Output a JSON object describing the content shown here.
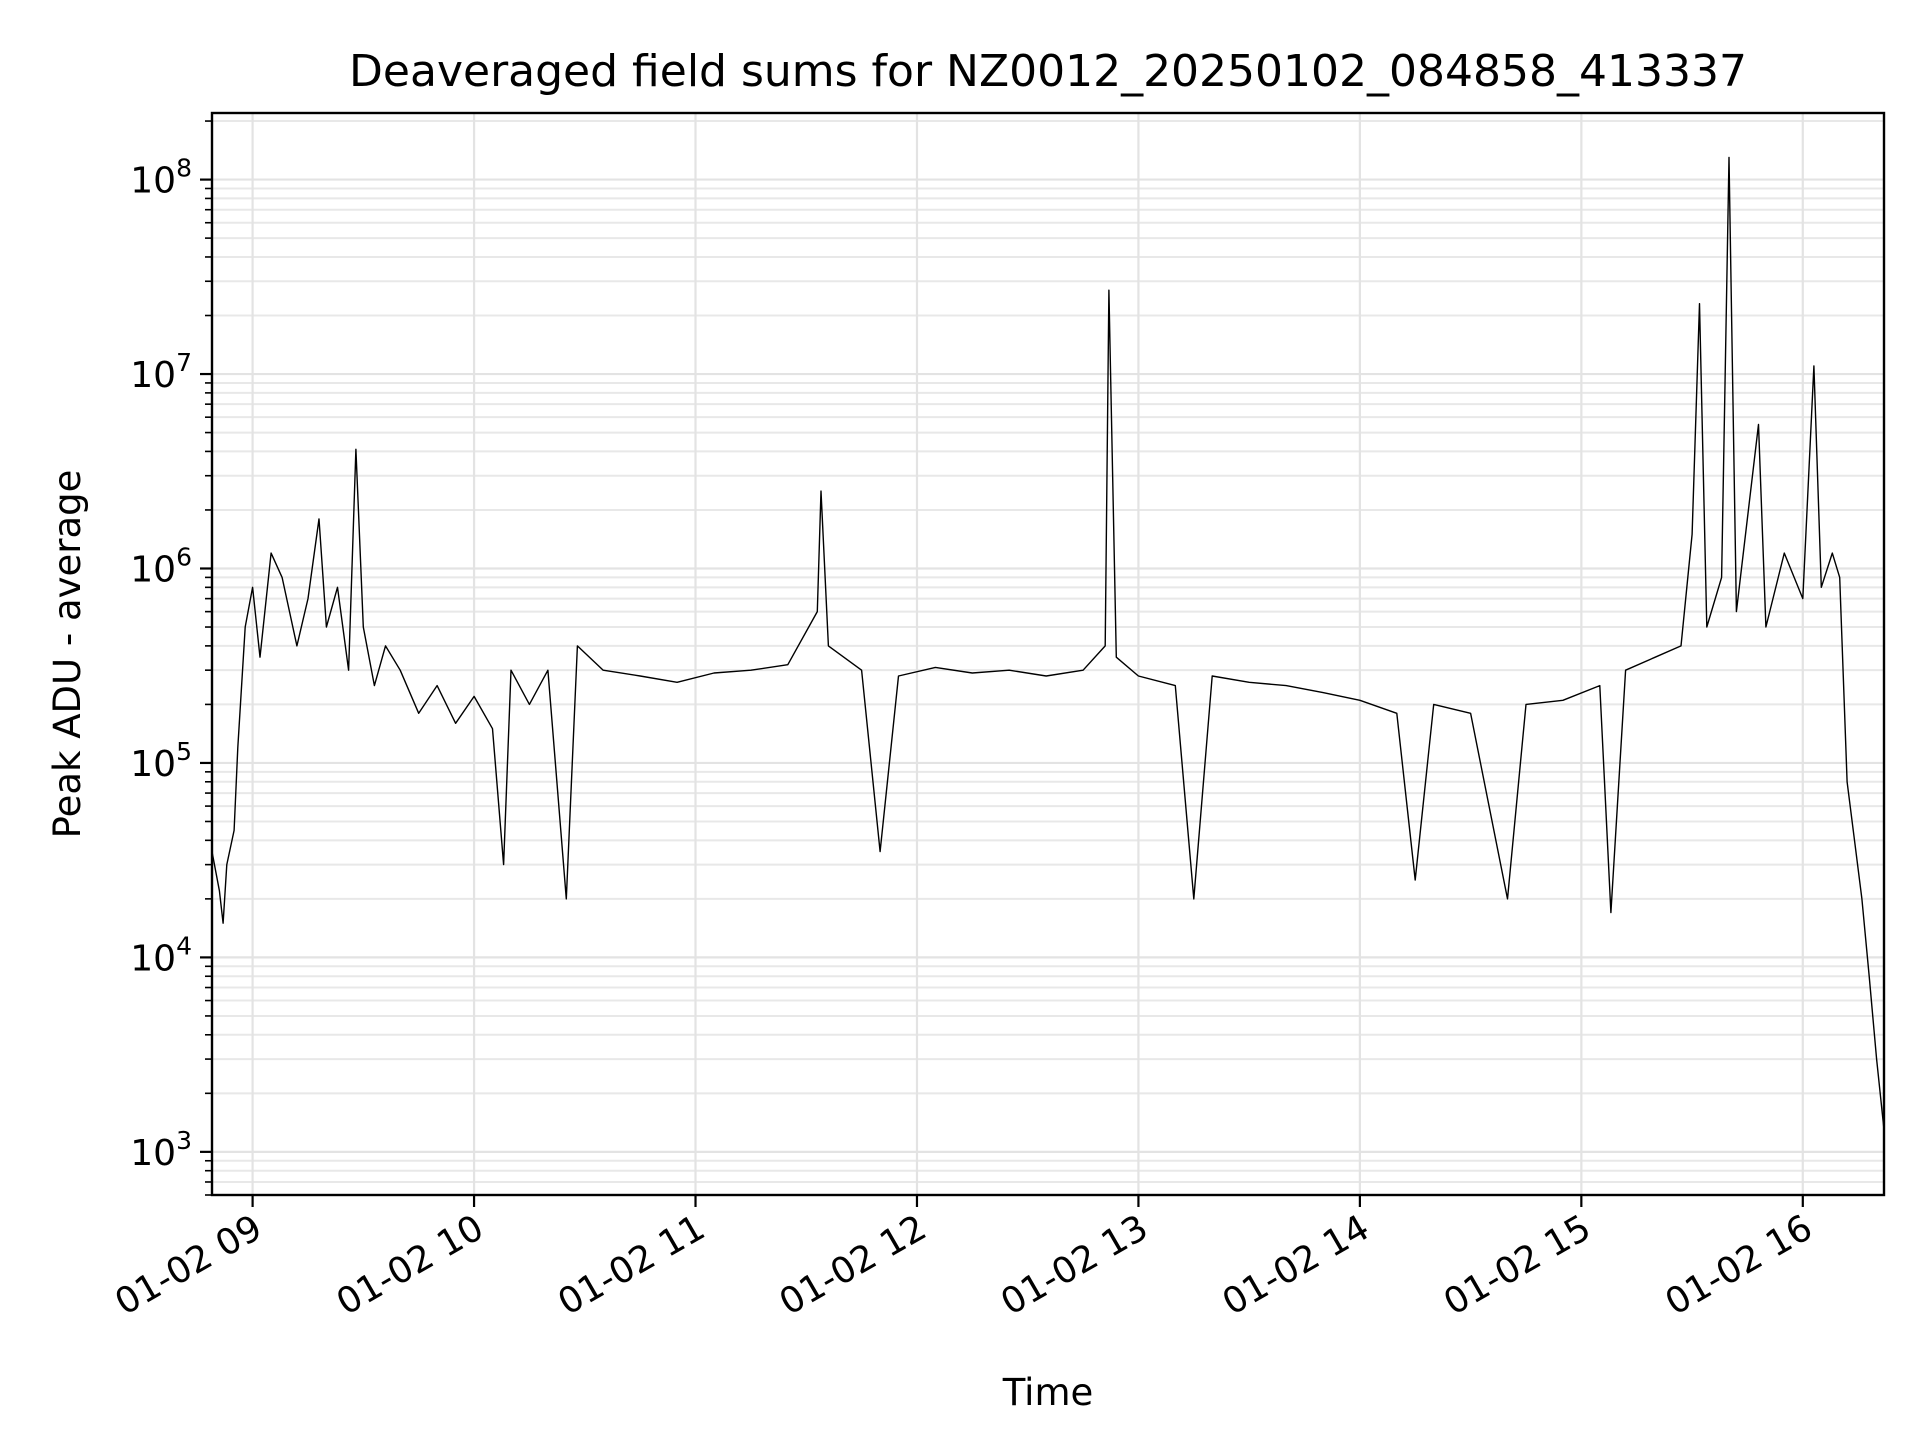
{
  "chart_data": {
    "type": "line",
    "title": "Deaveraged field sums for NZ0012_20250102_084858_413337",
    "xlabel": "Time",
    "ylabel": "Peak ADU - average",
    "yscale": "log",
    "ylim": [
      600,
      220000000
    ],
    "xlim": [
      "01-02 08:49",
      "01-02 16:22"
    ],
    "grid": true,
    "legend": "none",
    "line_color": "#000000",
    "x_ticks": [
      "01-02 09",
      "01-02 10",
      "01-02 11",
      "01-02 12",
      "01-02 13",
      "01-02 14",
      "01-02 15",
      "01-02 16"
    ],
    "y_ticks": [
      {
        "base": "10",
        "exp": "3",
        "value": 1000
      },
      {
        "base": "10",
        "exp": "4",
        "value": 10000
      },
      {
        "base": "10",
        "exp": "5",
        "value": 100000
      },
      {
        "base": "10",
        "exp": "6",
        "value": 1000000
      },
      {
        "base": "10",
        "exp": "7",
        "value": 10000000
      },
      {
        "base": "10",
        "exp": "8",
        "value": 100000000
      }
    ],
    "series": [
      {
        "values": [
          [
            "01-02 08:49",
            35000
          ],
          [
            "01-02 08:51",
            22000
          ],
          [
            "01-02 08:52",
            15000
          ],
          [
            "01-02 08:53",
            30000
          ],
          [
            "01-02 08:55",
            45000
          ],
          [
            "01-02 08:56",
            120000
          ],
          [
            "01-02 08:58",
            500000
          ],
          [
            "01-02 09:00",
            800000
          ],
          [
            "01-02 09:02",
            350000
          ],
          [
            "01-02 09:05",
            1200000
          ],
          [
            "01-02 09:08",
            900000
          ],
          [
            "01-02 09:10",
            600000
          ],
          [
            "01-02 09:12",
            400000
          ],
          [
            "01-02 09:15",
            700000
          ],
          [
            "01-02 09:18",
            1800000
          ],
          [
            "01-02 09:20",
            500000
          ],
          [
            "01-02 09:23",
            800000
          ],
          [
            "01-02 09:26",
            300000
          ],
          [
            "01-02 09:28",
            4100000
          ],
          [
            "01-02 09:30",
            500000
          ],
          [
            "01-02 09:33",
            250000
          ],
          [
            "01-02 09:36",
            400000
          ],
          [
            "01-02 09:40",
            300000
          ],
          [
            "01-02 09:45",
            180000
          ],
          [
            "01-02 09:50",
            250000
          ],
          [
            "01-02 09:55",
            160000
          ],
          [
            "01-02 10:00",
            220000
          ],
          [
            "01-02 10:05",
            150000
          ],
          [
            "01-02 10:08",
            30000
          ],
          [
            "01-02 10:10",
            300000
          ],
          [
            "01-02 10:15",
            200000
          ],
          [
            "01-02 10:20",
            300000
          ],
          [
            "01-02 10:25",
            20000
          ],
          [
            "01-02 10:28",
            400000
          ],
          [
            "01-02 10:35",
            300000
          ],
          [
            "01-02 10:45",
            280000
          ],
          [
            "01-02 10:55",
            260000
          ],
          [
            "01-02 11:05",
            290000
          ],
          [
            "01-02 11:15",
            300000
          ],
          [
            "01-02 11:25",
            320000
          ],
          [
            "01-02 11:33",
            600000
          ],
          [
            "01-02 11:34",
            2500000
          ],
          [
            "01-02 11:36",
            400000
          ],
          [
            "01-02 11:45",
            300000
          ],
          [
            "01-02 11:50",
            35000
          ],
          [
            "01-02 11:55",
            280000
          ],
          [
            "01-02 12:05",
            310000
          ],
          [
            "01-02 12:15",
            290000
          ],
          [
            "01-02 12:25",
            300000
          ],
          [
            "01-02 12:35",
            280000
          ],
          [
            "01-02 12:45",
            300000
          ],
          [
            "01-02 12:51",
            400000
          ],
          [
            "01-02 12:52",
            27000000
          ],
          [
            "01-02 12:54",
            350000
          ],
          [
            "01-02 13:00",
            280000
          ],
          [
            "01-02 13:10",
            250000
          ],
          [
            "01-02 13:15",
            20000
          ],
          [
            "01-02 13:20",
            280000
          ],
          [
            "01-02 13:30",
            260000
          ],
          [
            "01-02 13:40",
            250000
          ],
          [
            "01-02 13:50",
            230000
          ],
          [
            "01-02 14:00",
            210000
          ],
          [
            "01-02 14:10",
            180000
          ],
          [
            "01-02 14:15",
            25000
          ],
          [
            "01-02 14:20",
            200000
          ],
          [
            "01-02 14:30",
            180000
          ],
          [
            "01-02 14:40",
            20000
          ],
          [
            "01-02 14:45",
            200000
          ],
          [
            "01-02 14:55",
            210000
          ],
          [
            "01-02 15:05",
            250000
          ],
          [
            "01-02 15:08",
            17000
          ],
          [
            "01-02 15:12",
            300000
          ],
          [
            "01-02 15:20",
            350000
          ],
          [
            "01-02 15:27",
            400000
          ],
          [
            "01-02 15:30",
            1500000
          ],
          [
            "01-02 15:32",
            23000000
          ],
          [
            "01-02 15:34",
            500000
          ],
          [
            "01-02 15:38",
            900000
          ],
          [
            "01-02 15:40",
            130000000
          ],
          [
            "01-02 15:42",
            600000
          ],
          [
            "01-02 15:48",
            5500000
          ],
          [
            "01-02 15:50",
            500000
          ],
          [
            "01-02 15:55",
            1200000
          ],
          [
            "01-02 16:00",
            700000
          ],
          [
            "01-02 16:03",
            11000000
          ],
          [
            "01-02 16:05",
            800000
          ],
          [
            "01-02 16:08",
            1200000
          ],
          [
            "01-02 16:10",
            900000
          ],
          [
            "01-02 16:12",
            80000
          ],
          [
            "01-02 16:14",
            40000
          ],
          [
            "01-02 16:16",
            20000
          ],
          [
            "01-02 16:18",
            8000
          ],
          [
            "01-02 16:20",
            3000
          ],
          [
            "01-02 16:22",
            1300
          ]
        ]
      }
    ]
  }
}
